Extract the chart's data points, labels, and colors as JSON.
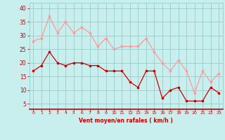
{
  "x": [
    0,
    1,
    2,
    3,
    4,
    5,
    6,
    7,
    8,
    9,
    10,
    11,
    12,
    13,
    14,
    15,
    16,
    17,
    18,
    19,
    20,
    21,
    22,
    23
  ],
  "avg_wind": [
    17,
    19,
    24,
    20,
    19,
    20,
    20,
    19,
    19,
    17,
    17,
    17,
    13,
    11,
    17,
    17,
    7,
    10,
    11,
    6,
    6,
    6,
    11,
    9
  ],
  "gust_wind": [
    28,
    29,
    37,
    31,
    35,
    31,
    33,
    31,
    26,
    29,
    25,
    26,
    26,
    26,
    29,
    24,
    20,
    17,
    21,
    17,
    9,
    17,
    13,
    16
  ],
  "avg_color": "#cc0000",
  "gust_color": "#ff9999",
  "bg_color": "#c8eeed",
  "grid_color": "#99cccc",
  "xlabel": "Vent moyen/en rafales ( km/h )",
  "xlabel_color": "#cc0000",
  "yticks": [
    5,
    10,
    15,
    20,
    25,
    30,
    35,
    40
  ],
  "ylim": [
    3,
    42
  ],
  "xlim": [
    -0.5,
    23.5
  ],
  "tick_color": "#cc0000",
  "markersize": 2.0,
  "linewidth": 0.9
}
